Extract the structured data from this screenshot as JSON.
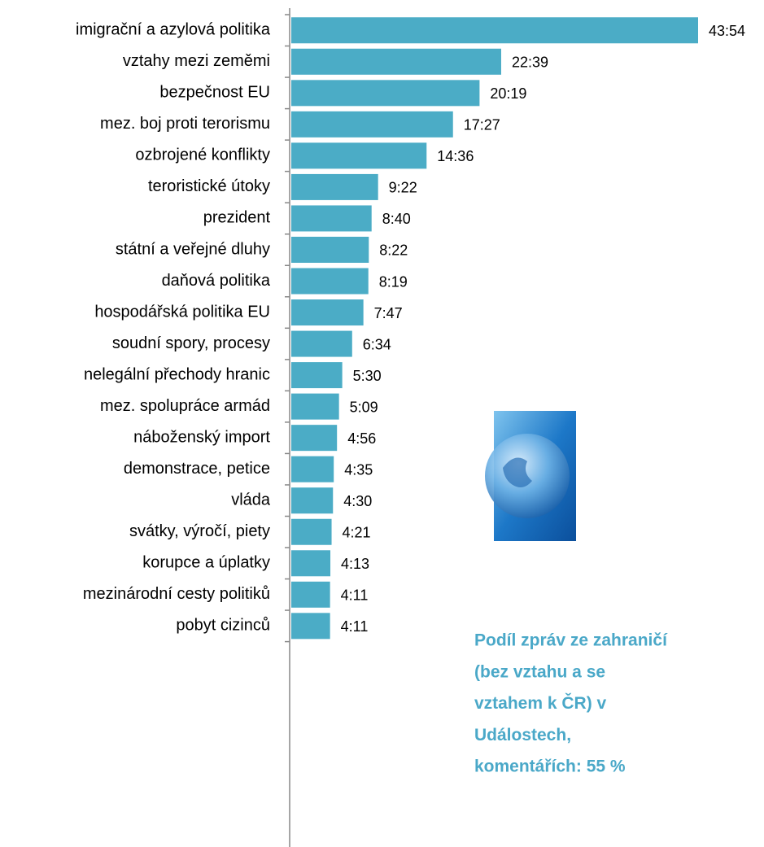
{
  "chart_data": {
    "type": "bar",
    "orientation": "horizontal",
    "color": "#4bacc6",
    "categories": [
      "imigrační a azylová politika",
      "vztahy mezi zeměmi",
      "bezpečnost EU",
      "mez. boj proti terorismu",
      "ozbrojené konflikty",
      "teroristické útoky",
      "prezident",
      "státní a veřejné dluhy",
      "daňová politika",
      "hospodářská politika EU",
      "soudní spory, procesy",
      "nelegální přechody hranic",
      "mez. spolupráce armád",
      "náboženský import",
      "demonstrace, petice",
      "vláda",
      "svátky, výročí, piety",
      "korupce a úplatky",
      "mezinárodní cesty politiků",
      "pobyt cizinců"
    ],
    "values": [
      2634,
      1359,
      1219,
      1047,
      876,
      562,
      520,
      502,
      499,
      467,
      394,
      330,
      309,
      296,
      275,
      270,
      261,
      253,
      251,
      251
    ],
    "value_labels": [
      "43:54",
      "22:39",
      "20:19",
      "17:27",
      "14:36",
      "9:22",
      "8:40",
      "8:22",
      "8:19",
      "7:47",
      "6:34",
      "5:30",
      "5:09",
      "4:56",
      "4:35",
      "4:30",
      "4:21",
      "4:13",
      "4:11",
      "4:11"
    ],
    "annotation": [
      "Podíl zpráv ze zahraničí",
      "(bez vztahu a se",
      "vztahem k ČR) v",
      "Událostech,",
      "komentářích: 55 %"
    ],
    "annotation_color": "#4aa8c8"
  }
}
